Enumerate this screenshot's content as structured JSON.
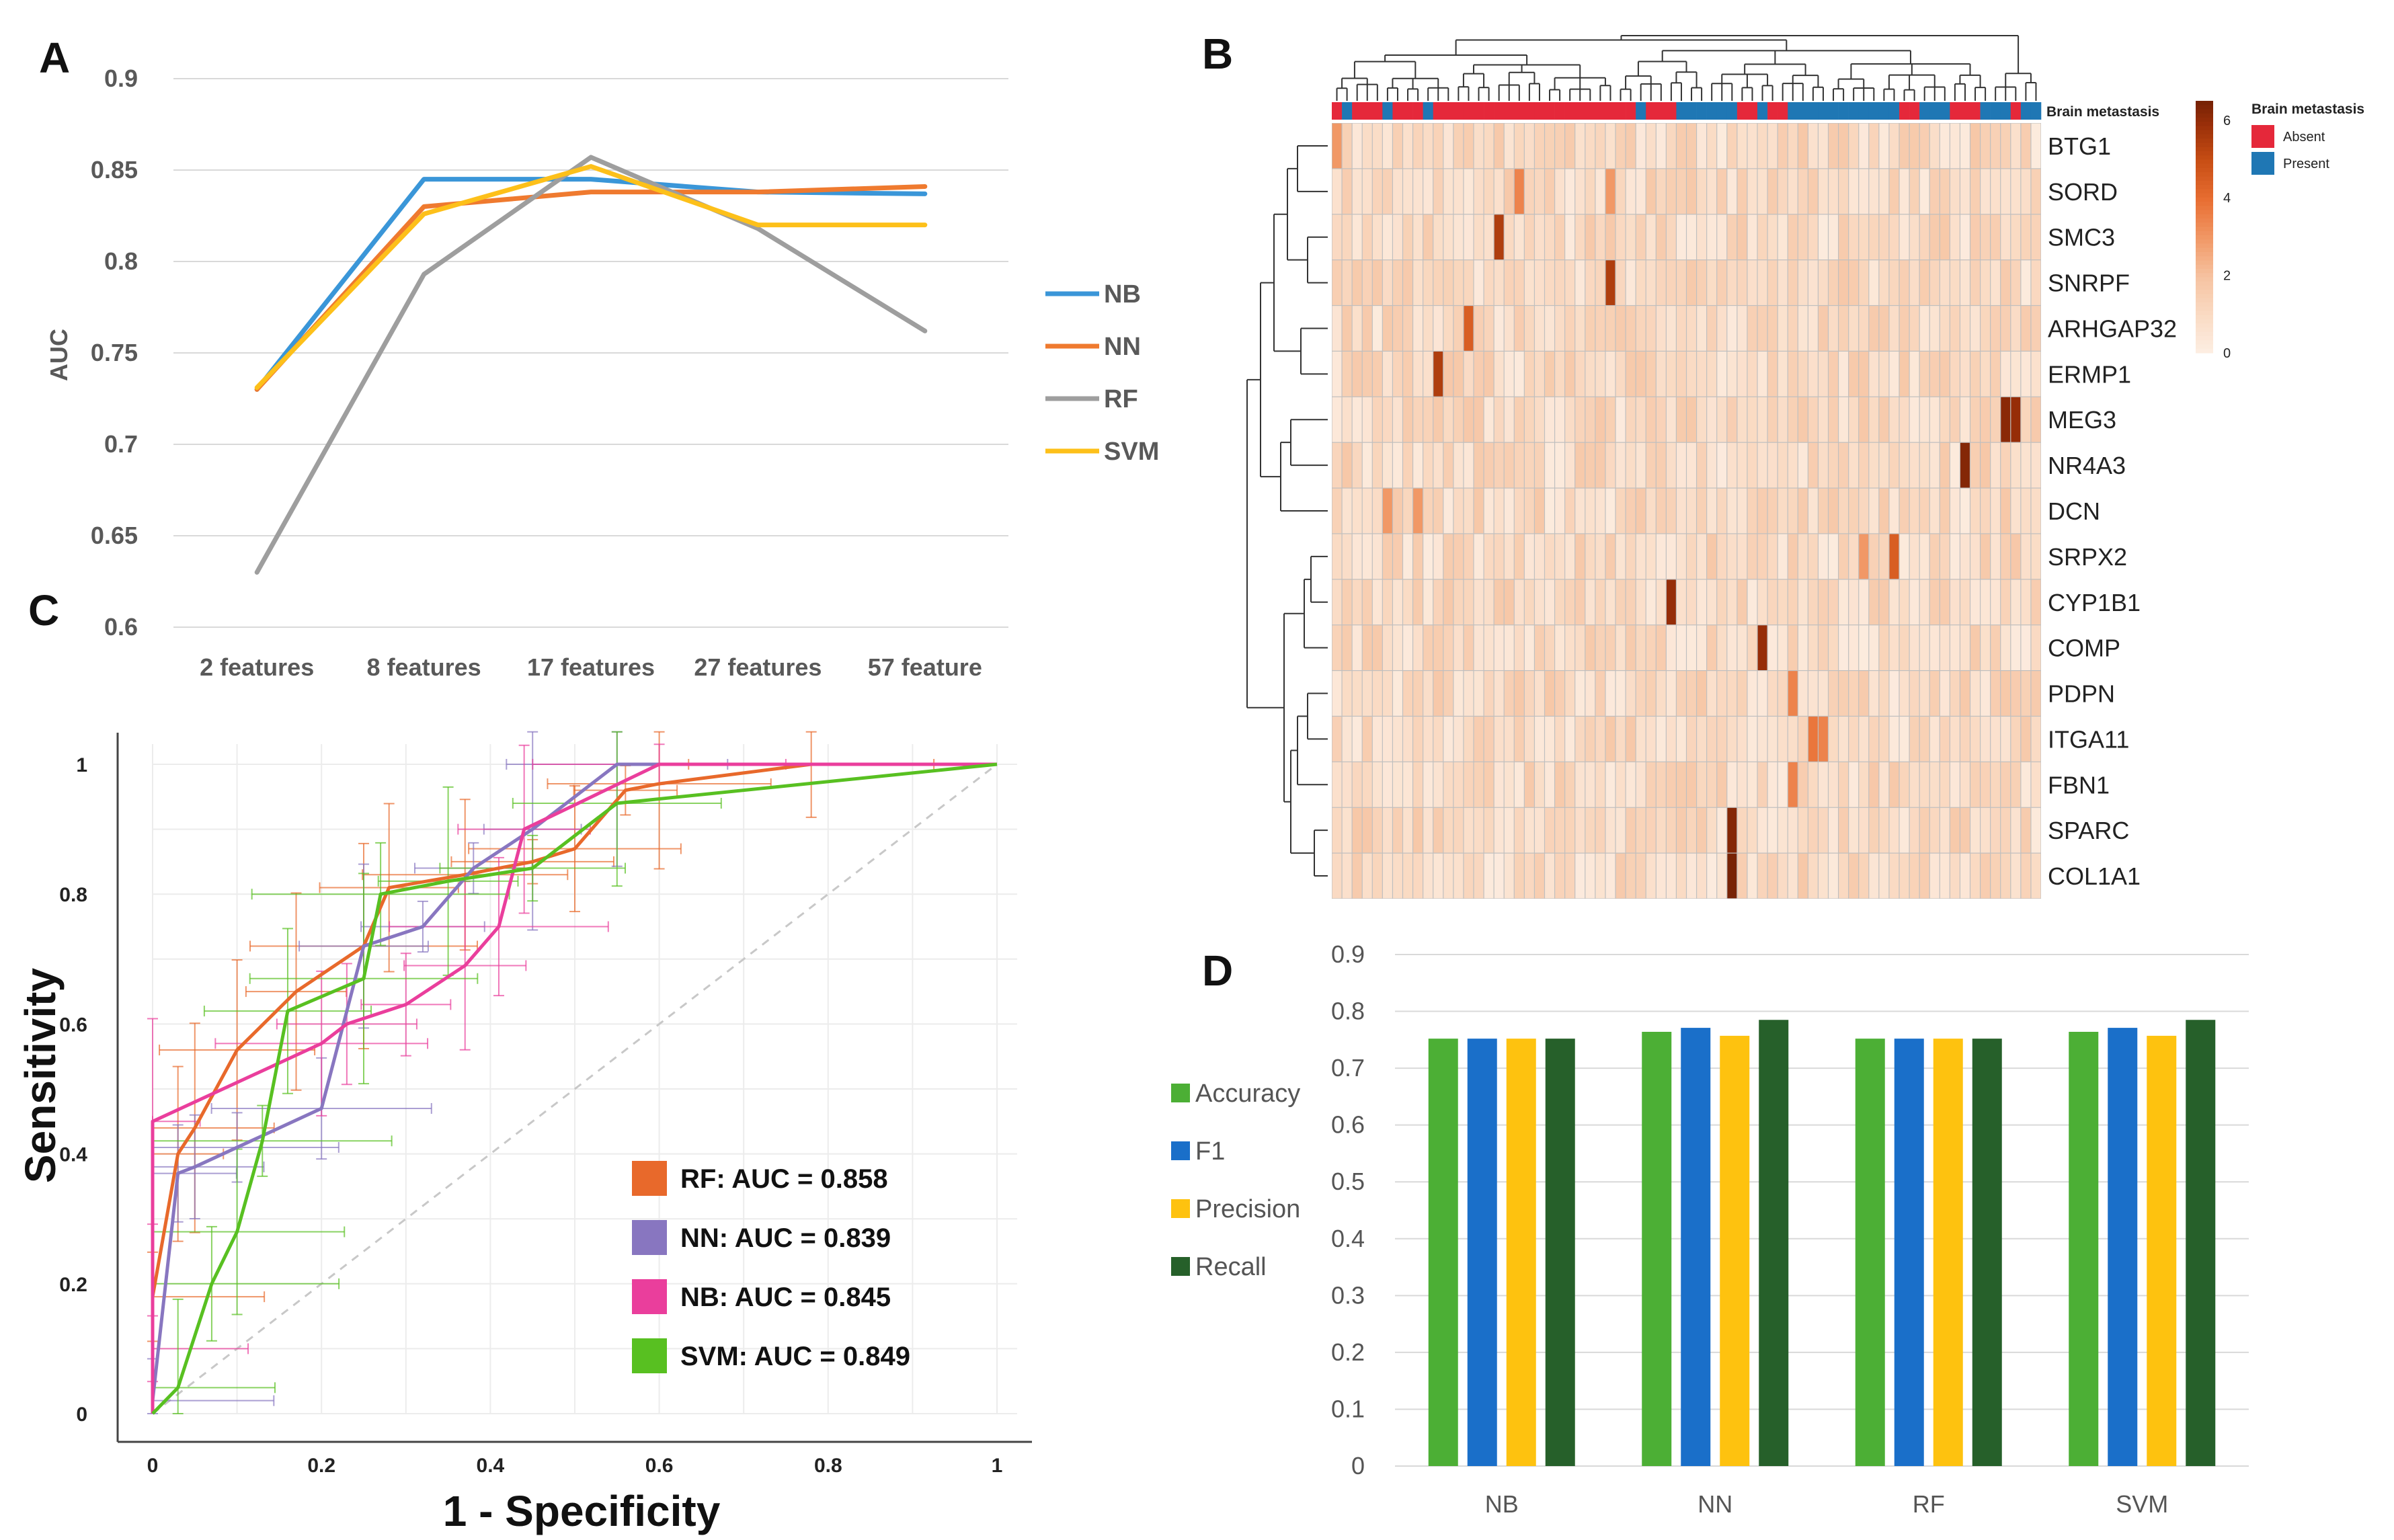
{
  "panel_labels": {
    "a": "A",
    "b": "B",
    "c": "C",
    "d": "D"
  },
  "chart_data": [
    {
      "panel": "A",
      "type": "line",
      "title": "",
      "xlabel": "",
      "ylabel": "AUC",
      "ylim": [
        0.6,
        0.9
      ],
      "yticks": [
        "0.6",
        "0.65",
        "0.7",
        "0.75",
        "0.8",
        "0.85",
        "0.9"
      ],
      "categories": [
        "2 features",
        "8 features",
        "17 features",
        "27 features",
        "57 feature"
      ],
      "grid": true,
      "legend_position": "right",
      "series": [
        {
          "name": "NB",
          "color": "#3a96d8",
          "values": [
            0.73,
            0.845,
            0.845,
            0.838,
            0.837
          ]
        },
        {
          "name": "NN",
          "color": "#ef7a2f",
          "values": [
            0.73,
            0.83,
            0.838,
            0.838,
            0.841
          ]
        },
        {
          "name": "RF",
          "color": "#9e9e9e",
          "values": [
            0.63,
            0.793,
            0.857,
            0.818,
            0.762
          ]
        },
        {
          "name": "SVM",
          "color": "#fdc01a",
          "values": [
            0.731,
            0.826,
            0.852,
            0.82,
            0.82
          ]
        }
      ]
    },
    {
      "panel": "B",
      "type": "heatmap",
      "title": "",
      "annotation_label": "Brain metastasis",
      "annotation_legend_title": "Brain metastasis",
      "annotation_classes": [
        {
          "name": "Absent",
          "color": "#e5283a"
        },
        {
          "name": "Present",
          "color": "#1f77b4"
        }
      ],
      "colorbar_ticks": [
        "6",
        "4",
        "2",
        "0"
      ],
      "colorbar_range": [
        0,
        6.5
      ],
      "rows": [
        "BTG1",
        "SORD",
        "SMC3",
        "SNRPF",
        "ARHGAP32",
        "ERMP1",
        "MEG3",
        "NR4A3",
        "DCN",
        "SRPX2",
        "CYP1B1",
        "COMP",
        "PDPN",
        "ITGA11",
        "FBN1",
        "SPARC",
        "COL1A1"
      ],
      "n_columns": 70,
      "column_annotation": "RBRRRBRRRBRRRRRRRRRRRRRRRRRRRRBRRRBBBBBBRRBRRBBBBBBBBBBBRRBBBRRRBBBRBBB",
      "hotspots": [
        {
          "row": "BTG1",
          "col": 0,
          "value": 3
        },
        {
          "row": "SORD",
          "col": 18,
          "value": 3.5
        },
        {
          "row": "SORD",
          "col": 27,
          "value": 3
        },
        {
          "row": "SMC3",
          "col": 16,
          "value": 5.5
        },
        {
          "row": "SNRPF",
          "col": 27,
          "value": 5.5
        },
        {
          "row": "ARHGAP32",
          "col": 13,
          "value": 4.5
        },
        {
          "row": "ERMP1",
          "col": 10,
          "value": 5.5
        },
        {
          "row": "MEG3",
          "col": 66,
          "value": 6.2
        },
        {
          "row": "MEG3",
          "col": 67,
          "value": 6
        },
        {
          "row": "NR4A3",
          "col": 62,
          "value": 6.3
        },
        {
          "row": "DCN",
          "col": 5,
          "value": 3
        },
        {
          "row": "DCN",
          "col": 8,
          "value": 3
        },
        {
          "row": "SRPX2",
          "col": 55,
          "value": 4.5
        },
        {
          "row": "SRPX2",
          "col": 52,
          "value": 3
        },
        {
          "row": "CYP1B1",
          "col": 33,
          "value": 6
        },
        {
          "row": "COMP",
          "col": 42,
          "value": 6
        },
        {
          "row": "PDPN",
          "col": 45,
          "value": 3.5
        },
        {
          "row": "ITGA11",
          "col": 47,
          "value": 3.8
        },
        {
          "row": "ITGA11",
          "col": 48,
          "value": 3.5
        },
        {
          "row": "FBN1",
          "col": 45,
          "value": 3.5
        },
        {
          "row": "SPARC",
          "col": 39,
          "value": 6.3
        },
        {
          "row": "COL1A1",
          "col": 39,
          "value": 6.5
        }
      ]
    },
    {
      "panel": "C",
      "type": "line",
      "title": "",
      "xlabel": "1 - Specificity",
      "ylabel": "Sensitivity",
      "xlim": [
        0,
        1
      ],
      "ylim": [
        0,
        1
      ],
      "xticks": [
        "0",
        "0.2",
        "0.4",
        "0.6",
        "0.8",
        "1"
      ],
      "yticks": [
        "0",
        "0.2",
        "0.4",
        "0.6",
        "0.8",
        "1"
      ],
      "grid": true,
      "legend_position": "bottom-right",
      "diagonal_reference": true,
      "series": [
        {
          "name": "RF",
          "label": "RF: AUC = 0.858",
          "color": "#e8692b",
          "x": [
            0,
            0,
            0.03,
            0.05,
            0.1,
            0.17,
            0.25,
            0.28,
            0.37,
            0.45,
            0.5,
            0.56,
            0.6,
            0.78,
            1
          ],
          "y": [
            0,
            0.18,
            0.4,
            0.44,
            0.56,
            0.65,
            0.72,
            0.81,
            0.83,
            0.85,
            0.87,
            0.96,
            0.97,
            1,
            1
          ]
        },
        {
          "name": "NN",
          "label": "NN: AUC = 0.839",
          "color": "#8876c0",
          "x": [
            0,
            0,
            0.03,
            0.05,
            0.1,
            0.2,
            0.25,
            0.32,
            0.38,
            0.45,
            0.55,
            1
          ],
          "y": [
            0,
            0.02,
            0.37,
            0.38,
            0.41,
            0.47,
            0.72,
            0.75,
            0.84,
            0.9,
            1,
            1
          ]
        },
        {
          "name": "NB",
          "label": "NB: AUC = 0.845",
          "color": "#ea3e9c",
          "x": [
            0,
            0,
            0,
            0.2,
            0.23,
            0.3,
            0.37,
            0.41,
            0.44,
            0.6,
            1
          ],
          "y": [
            0,
            0.1,
            0.45,
            0.57,
            0.6,
            0.63,
            0.69,
            0.75,
            0.9,
            1,
            1
          ]
        },
        {
          "name": "SVM",
          "label": "SVM: AUC = 0.849",
          "color": "#58c021",
          "x": [
            0,
            0.03,
            0.07,
            0.1,
            0.13,
            0.16,
            0.25,
            0.27,
            0.35,
            0.45,
            0.55,
            1
          ],
          "y": [
            0,
            0.04,
            0.2,
            0.28,
            0.42,
            0.62,
            0.67,
            0.8,
            0.82,
            0.84,
            0.94,
            1
          ]
        }
      ]
    },
    {
      "panel": "D",
      "type": "bar",
      "title": "",
      "xlabel": "",
      "ylabel": "",
      "ylim": [
        0,
        0.9
      ],
      "yticks": [
        "0",
        "0.1",
        "0.2",
        "0.3",
        "0.4",
        "0.5",
        "0.6",
        "0.7",
        "0.8",
        "0.9"
      ],
      "categories": [
        "NB",
        "NN",
        "RF",
        "SVM"
      ],
      "grid": true,
      "legend_position": "left",
      "series": [
        {
          "name": "Accuracy",
          "color": "#4caf35",
          "values": [
            0.752,
            0.764,
            0.752,
            0.764
          ]
        },
        {
          "name": "F1",
          "color": "#1a6fc9",
          "values": [
            0.752,
            0.771,
            0.752,
            0.771
          ]
        },
        {
          "name": "Precision",
          "color": "#fec20f",
          "values": [
            0.752,
            0.757,
            0.752,
            0.757
          ]
        },
        {
          "name": "Recall",
          "color": "#26602a",
          "values": [
            0.752,
            0.785,
            0.752,
            0.785
          ]
        }
      ]
    }
  ]
}
